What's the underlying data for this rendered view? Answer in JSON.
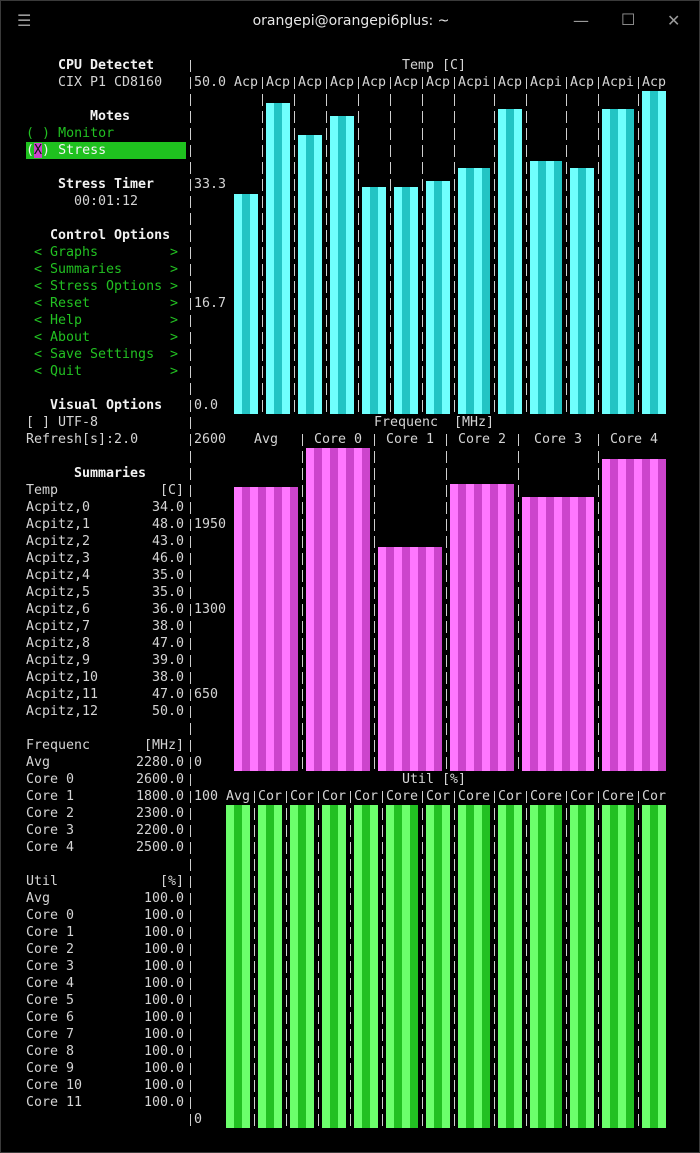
{
  "window": {
    "title": "orangepi@orangepi6plus: ~",
    "icons": [
      "menu-icon",
      "minimize-icon",
      "maximize-icon",
      "close-icon"
    ]
  },
  "cpu": {
    "heading": "CPU Detectet",
    "model": "CIX P1 CD8160"
  },
  "modes": {
    "heading": "Motes",
    "options": [
      {
        "open": "(",
        "mark": " ",
        "close": ")",
        "label": "Monitor",
        "selected": false
      },
      {
        "open": "(",
        "mark": "X",
        "close": ")",
        "label": "Stress",
        "selected": true
      }
    ]
  },
  "timer": {
    "heading": "Stress Timer",
    "value": "00:01:12"
  },
  "control": {
    "heading": "Control Options",
    "left_arrow": "<",
    "right_arrow": ">",
    "items": [
      "Graphs",
      "Summaries",
      "Stress Options",
      "Reset",
      "Help",
      "About",
      "Save Settings",
      "Quit"
    ]
  },
  "visual": {
    "heading": "Visual Options",
    "utf8": "[ ] UTF-8",
    "refresh": "Refresh[s]:2.0"
  },
  "summaries": {
    "heading": "Summaries",
    "groups": [
      {
        "title": "Temp",
        "unit": "[C]",
        "rows": [
          [
            "Acpitz,0",
            "34.0"
          ],
          [
            "Acpitz,1",
            "48.0"
          ],
          [
            "Acpitz,2",
            "43.0"
          ],
          [
            "Acpitz,3",
            "46.0"
          ],
          [
            "Acpitz,4",
            "35.0"
          ],
          [
            "Acpitz,5",
            "35.0"
          ],
          [
            "Acpitz,6",
            "36.0"
          ],
          [
            "Acpitz,7",
            "38.0"
          ],
          [
            "Acpitz,8",
            "47.0"
          ],
          [
            "Acpitz,9",
            "39.0"
          ],
          [
            "Acpitz,10",
            "38.0"
          ],
          [
            "Acpitz,11",
            "47.0"
          ],
          [
            "Acpitz,12",
            "50.0"
          ]
        ]
      },
      {
        "title": "Frequenc",
        "unit": "[MHz]",
        "rows": [
          [
            "Avg",
            "2280.0"
          ],
          [
            "Core 0",
            "2600.0"
          ],
          [
            "Core 1",
            "1800.0"
          ],
          [
            "Core 2",
            "2300.0"
          ],
          [
            "Core 3",
            "2200.0"
          ],
          [
            "Core 4",
            "2500.0"
          ]
        ]
      },
      {
        "title": "Util",
        "unit": "[%]",
        "rows": [
          [
            "Avg",
            "100.0"
          ],
          [
            "Core 0",
            "100.0"
          ],
          [
            "Core 1",
            "100.0"
          ],
          [
            "Core 2",
            "100.0"
          ],
          [
            "Core 3",
            "100.0"
          ],
          [
            "Core 4",
            "100.0"
          ],
          [
            "Core 5",
            "100.0"
          ],
          [
            "Core 6",
            "100.0"
          ],
          [
            "Core 7",
            "100.0"
          ],
          [
            "Core 8",
            "100.0"
          ],
          [
            "Core 9",
            "100.0"
          ],
          [
            "Core 10",
            "100.0"
          ],
          [
            "Core 11",
            "100.0"
          ]
        ]
      }
    ]
  },
  "chart_data": [
    {
      "type": "bar",
      "title": "Temp [C]",
      "ylim": [
        0,
        50
      ],
      "ticks": [
        "50.0",
        "33.3",
        "16.7",
        "0.0"
      ],
      "categories": [
        "Acp",
        "Acp",
        "Acp",
        "Acp",
        "Acp",
        "Acp",
        "Acp",
        "Acpi",
        "Acp",
        "Acpi",
        "Acp",
        "Acpi",
        "Acp"
      ],
      "values": [
        34,
        48,
        43,
        46,
        35,
        35,
        36,
        38,
        47,
        39,
        38,
        47,
        50
      ],
      "colors": [
        "#6ffffd",
        "#22c4c4"
      ]
    },
    {
      "type": "bar",
      "title": "Frequenc  [MHz]",
      "ylim": [
        0,
        2600
      ],
      "ticks": [
        "2600",
        "1950",
        "1300",
        "650",
        "0"
      ],
      "categories": [
        "Avg",
        "Core 0",
        "Core 1",
        "Core 2",
        "Core 3",
        "Core 4"
      ],
      "values": [
        2280,
        2600,
        1800,
        2300,
        2200,
        2500
      ],
      "colors": [
        "#ff77ff",
        "#cc44cc"
      ]
    },
    {
      "type": "bar",
      "title": "Util [%]",
      "ylim": [
        0,
        100
      ],
      "ticks": [
        "100",
        "0"
      ],
      "categories": [
        "Avg",
        "Cor",
        "Cor",
        "Cor",
        "Cor",
        "Core",
        "Cor",
        "Core",
        "Cor",
        "Core",
        "Cor",
        "Core",
        "Cor"
      ],
      "values": [
        100,
        100,
        100,
        100,
        100,
        100,
        100,
        100,
        100,
        100,
        100,
        100,
        100
      ],
      "colors": [
        "#6cff6c",
        "#22c022"
      ]
    }
  ]
}
